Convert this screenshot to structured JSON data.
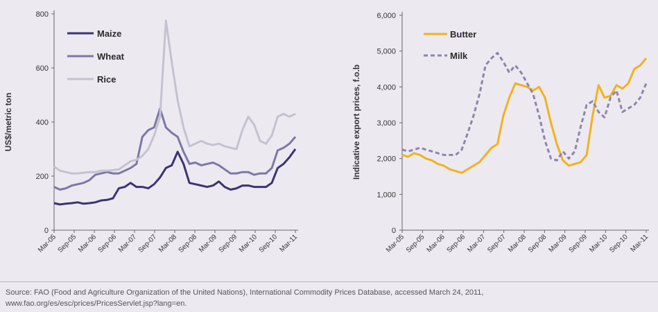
{
  "chart_data": [
    {
      "type": "line",
      "title": "",
      "xlabel": "",
      "ylabel": "US$/metric ton",
      "ylim": [
        0,
        800
      ],
      "yticks": [
        0,
        200,
        400,
        600,
        800
      ],
      "xticks": [
        "Mar-05",
        "Sep-05",
        "Mar-06",
        "Sep-06",
        "Mar-07",
        "Sep-07",
        "Mar-08",
        "Sep-08",
        "Mar-09",
        "Sep-09",
        "Mar-10",
        "Sep-10",
        "Mar-11"
      ],
      "legend_position": "top-left",
      "grid": false,
      "series": [
        {
          "name": "Maize",
          "color": "#3a3472",
          "values": [
            100,
            95,
            98,
            100,
            103,
            98,
            100,
            103,
            110,
            112,
            118,
            155,
            160,
            175,
            160,
            160,
            155,
            170,
            195,
            230,
            240,
            290,
            245,
            175,
            170,
            165,
            160,
            165,
            180,
            160,
            150,
            155,
            165,
            165,
            160,
            160,
            160,
            175,
            230,
            245,
            270,
            300
          ]
        },
        {
          "name": "Wheat",
          "color": "#7c78a4",
          "values": [
            160,
            150,
            155,
            165,
            170,
            175,
            185,
            205,
            210,
            215,
            210,
            210,
            220,
            230,
            245,
            345,
            370,
            380,
            450,
            380,
            360,
            345,
            290,
            245,
            250,
            240,
            245,
            250,
            240,
            225,
            210,
            210,
            215,
            215,
            205,
            210,
            210,
            230,
            295,
            305,
            320,
            345
          ]
        },
        {
          "name": "Rice",
          "color": "#c4c2d0",
          "values": [
            235,
            220,
            215,
            210,
            210,
            212,
            215,
            215,
            220,
            220,
            222,
            225,
            240,
            255,
            260,
            275,
            300,
            350,
            420,
            775,
            620,
            480,
            380,
            310,
            320,
            330,
            320,
            315,
            320,
            310,
            305,
            300,
            370,
            420,
            390,
            330,
            320,
            350,
            420,
            430,
            420,
            430
          ]
        }
      ]
    },
    {
      "type": "line",
      "title": "",
      "xlabel": "",
      "ylabel": "Indicative export prices, f.o.b",
      "ylim": [
        0,
        6000
      ],
      "yticks": [
        "0",
        "1,000",
        "2,000",
        "3,000",
        "4,000",
        "5,000",
        "6,000"
      ],
      "xticks": [
        "Mar-05",
        "Sep-05",
        "Mar-06",
        "Sep-06",
        "Mar-07",
        "Sep-07",
        "Mar-08",
        "Sep-08",
        "Mar-09",
        "Sep-09",
        "Mar-10",
        "Sep-10",
        "Mar-11"
      ],
      "legend_position": "top-left",
      "grid": false,
      "series": [
        {
          "name": "Butter",
          "color": "#f2b21b",
          "style": "solid",
          "values": [
            2100,
            2050,
            2150,
            2100,
            2000,
            1950,
            1850,
            1800,
            1700,
            1650,
            1600,
            1700,
            1800,
            1900,
            2100,
            2300,
            2400,
            3200,
            3700,
            4100,
            4050,
            4000,
            3900,
            4000,
            3700,
            3000,
            2400,
            1950,
            1800,
            1850,
            1900,
            2100,
            3200,
            4050,
            3700,
            3750,
            4050,
            3950,
            4100,
            4500,
            4600,
            4800
          ]
        },
        {
          "name": "Milk",
          "color": "#8a86aa",
          "style": "dashed",
          "values": [
            2250,
            2200,
            2250,
            2300,
            2250,
            2200,
            2150,
            2100,
            2100,
            2100,
            2250,
            2700,
            3200,
            3800,
            4600,
            4800,
            4950,
            4700,
            4400,
            4600,
            4400,
            4100,
            3800,
            3200,
            2500,
            2000,
            1950,
            2200,
            2000,
            2200,
            2900,
            3500,
            3600,
            3300,
            3150,
            3700,
            3900,
            3300,
            3400,
            3500,
            3700,
            4100
          ]
        }
      ]
    }
  ],
  "source_text": "Source: FAO (Food and Agriculture Organization of the United Nations), International Commodity Prices Database, accessed March 24, 2011,",
  "source_url": "www.fao.org/es/esc/prices/PricesServlet.jsp?lang=en."
}
